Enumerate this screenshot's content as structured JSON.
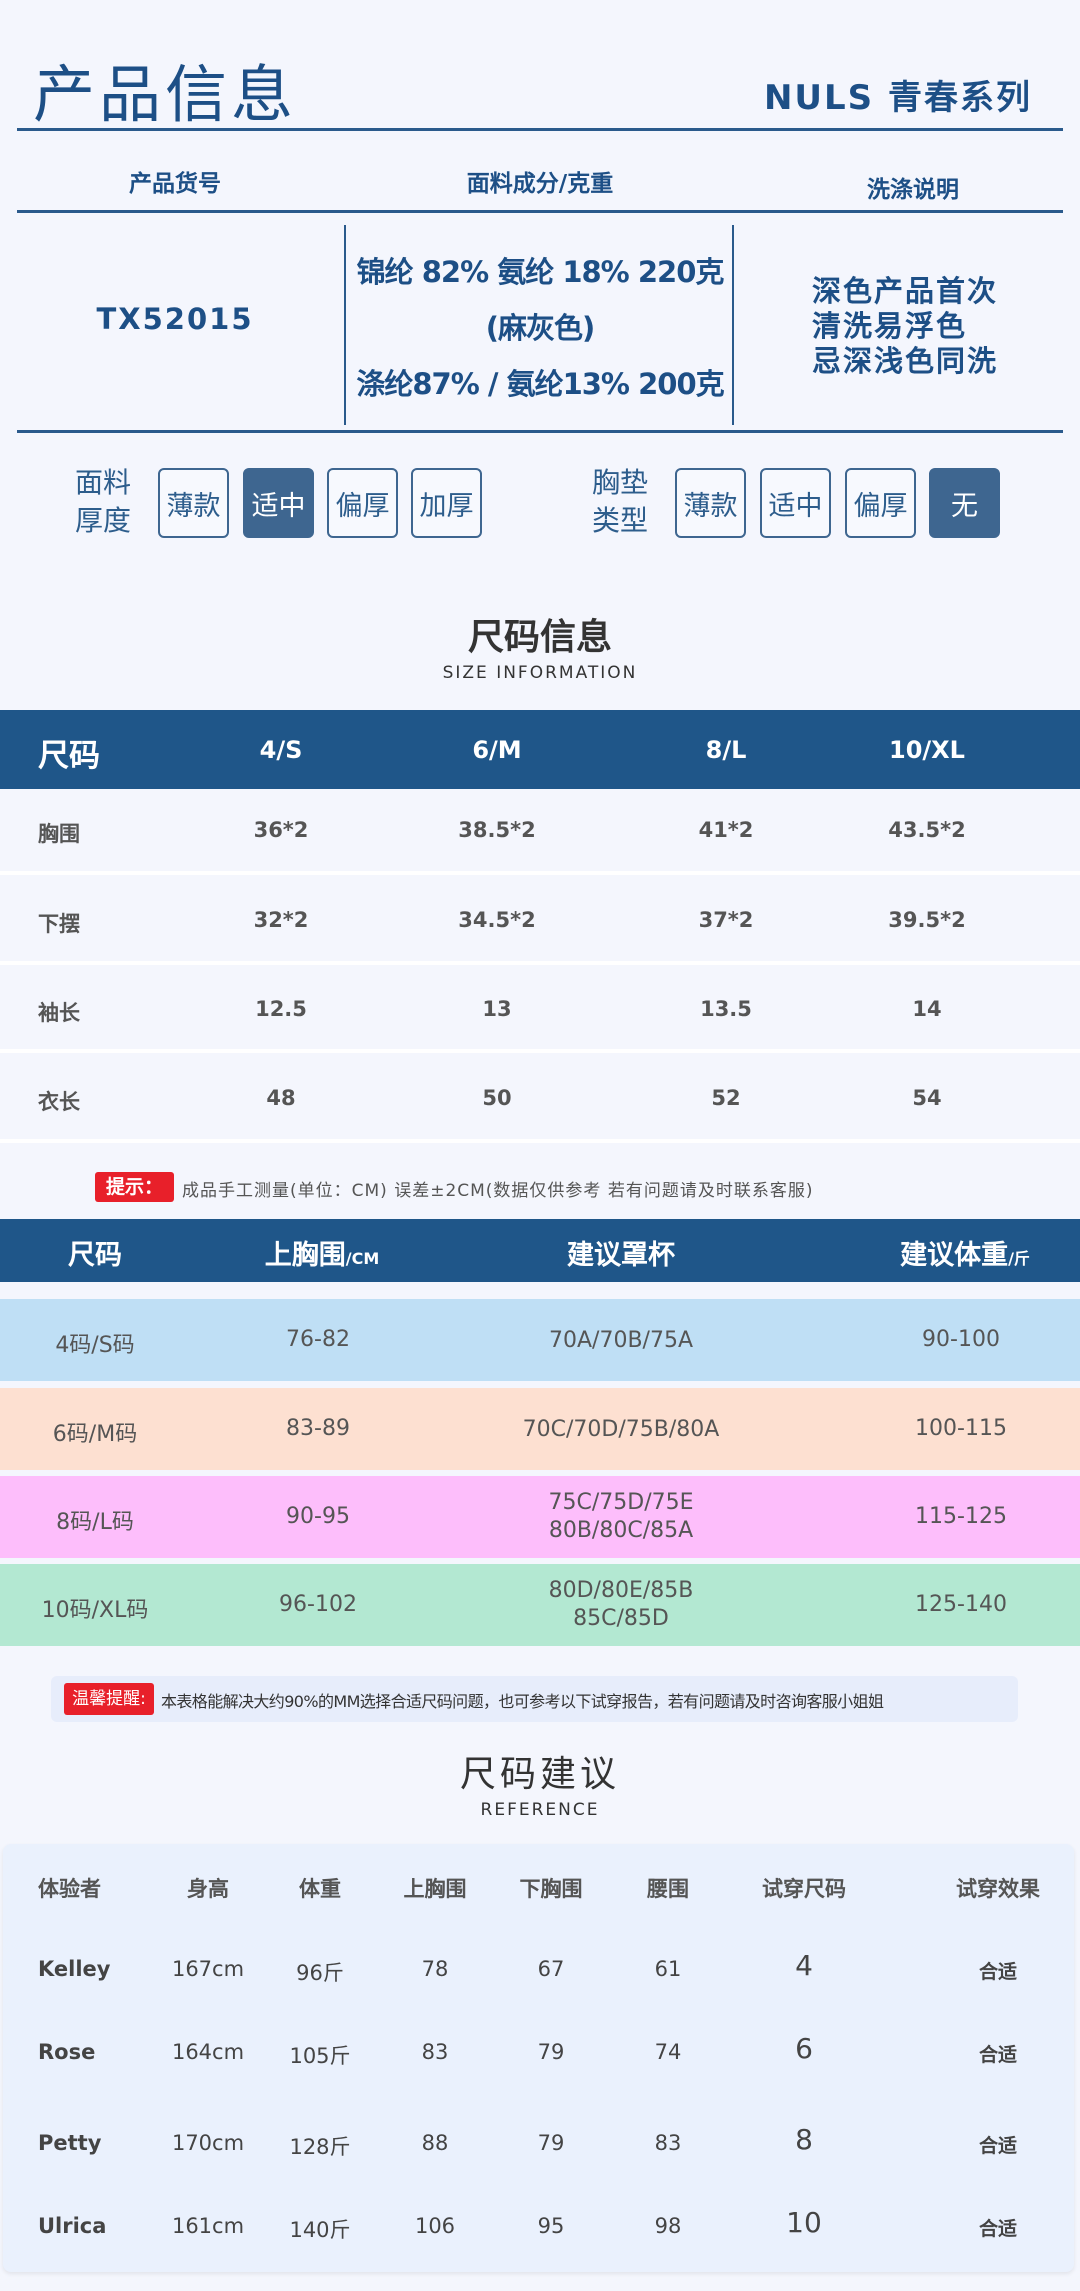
{
  "header": {
    "title": "产品信息",
    "series": "NULS 青春系列"
  },
  "info": {
    "columns": [
      "产品货号",
      "面料成分/克重",
      "洗涤说明"
    ],
    "sku": "TX52015",
    "composition": [
      "锦纶 82% 氨纶 18% 220克",
      "(麻灰色)",
      "涤纶87% / 氨纶13% 200克"
    ],
    "wash": [
      "深色产品首次",
      "清洗易浮色",
      "忌深浅色同洗"
    ]
  },
  "thickness": {
    "label": [
      "面料",
      "厚度"
    ],
    "options": [
      "薄款",
      "适中",
      "偏厚",
      "加厚"
    ],
    "selected": "适中"
  },
  "pad": {
    "label": [
      "胸垫",
      "类型"
    ],
    "options": [
      "薄款",
      "适中",
      "偏厚",
      "无"
    ],
    "selected": "无"
  },
  "size_info": {
    "title": "尺码信息",
    "subtitle": "SIZE INFORMATION",
    "header": [
      "尺码",
      "4/S",
      "6/M",
      "8/L",
      "10/XL"
    ],
    "rows": [
      [
        "胸围",
        "36*2",
        "38.5*2",
        "41*2",
        "43.5*2"
      ],
      [
        "下摆",
        "32*2",
        "34.5*2",
        "37*2",
        "39.5*2"
      ],
      [
        "袖长",
        "12.5",
        "13",
        "13.5",
        "14"
      ],
      [
        "衣长",
        "48",
        "50",
        "52",
        "54"
      ]
    ],
    "tip_label": "提示：",
    "tip_text": "成品手工测量(单位：CM) 误差±2CM(数据仅供参考  若有问题请及时联系客服)"
  },
  "bra_table": {
    "header": [
      "尺码",
      "上胸围",
      "/CM",
      "建议罩杯",
      "建议体重",
      "/斤"
    ],
    "rows": [
      {
        "size": "4码/S码",
        "bust": "76-82",
        "cup": [
          "70A/70B/75A"
        ],
        "weight": "90-100",
        "color": "#bfdff5"
      },
      {
        "size": "6码/M码",
        "bust": "83-89",
        "cup": [
          "70C/70D/75B/80A"
        ],
        "weight": "100-115",
        "color": "#fde0d1"
      },
      {
        "size": "8码/L码",
        "bust": "90-95",
        "cup": [
          "75C/75D/75E",
          "80B/80C/85A"
        ],
        "weight": "115-125",
        "color": "#fdbefb"
      },
      {
        "size": "10码/XL码",
        "bust": "96-102",
        "cup": [
          "80D/80E/85B",
          "85C/85D"
        ],
        "weight": "125-140",
        "color": "#b3e8d2"
      }
    ]
  },
  "warm_tip": {
    "label": "温馨提醒:",
    "text": "本表格能解决大约90%的MM选择合适尺码问题，也可参考以下试穿报告，若有问题请及时咨询客服小姐姐"
  },
  "reference": {
    "title": "尺码建议",
    "subtitle": "REFERENCE",
    "header": [
      "体验者",
      "身高",
      "体重",
      "上胸围",
      "下胸围",
      "腰围",
      "试穿尺码",
      "试穿效果"
    ],
    "rows": [
      [
        "Kelley",
        "167cm",
        "96斤",
        "78",
        "67",
        "61",
        "4",
        "合适"
      ],
      [
        "Rose",
        "164cm",
        "105斤",
        "83",
        "79",
        "74",
        "6",
        "合适"
      ],
      [
        "Petty",
        "170cm",
        "128斤",
        "88",
        "79",
        "83",
        "8",
        "合适"
      ],
      [
        "Ulrica",
        "161cm",
        "140斤",
        "106",
        "95",
        "98",
        "10",
        "合适"
      ]
    ]
  }
}
